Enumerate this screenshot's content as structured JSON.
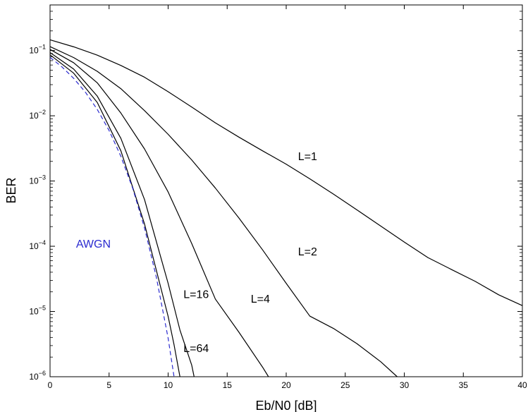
{
  "chart_data": {
    "type": "line",
    "xlabel": "Eb/N0 [dB]",
    "ylabel": "BER",
    "xlim": [
      0,
      40
    ],
    "ylim": [
      1e-06,
      0.5
    ],
    "yscale": "log",
    "grid": false,
    "x_ticks": [
      0,
      5,
      10,
      15,
      20,
      25,
      30,
      35,
      40
    ],
    "x_tick_labels": [
      "0",
      "5",
      "10",
      "15",
      "20",
      "25",
      "30",
      "35",
      "40"
    ],
    "y_ticks": [
      1e-06,
      1e-05,
      0.0001,
      0.001,
      0.01,
      0.1
    ],
    "y_tick_labels": [
      {
        "base": "10",
        "exp": "−6"
      },
      {
        "base": "10",
        "exp": "−5"
      },
      {
        "base": "10",
        "exp": "−4"
      },
      {
        "base": "10",
        "exp": "−3"
      },
      {
        "base": "10",
        "exp": "−2"
      },
      {
        "base": "10",
        "exp": "−1"
      }
    ],
    "series": [
      {
        "name": "L=1",
        "color": "#000000",
        "dash": "solid",
        "points": [
          [
            0,
            0.146
          ],
          [
            2,
            0.114
          ],
          [
            4,
            0.085
          ],
          [
            6,
            0.059
          ],
          [
            8,
            0.039
          ],
          [
            10,
            0.0234
          ],
          [
            12,
            0.0136
          ],
          [
            14,
            0.0078
          ],
          [
            16,
            0.0047
          ],
          [
            18,
            0.0029
          ],
          [
            20,
            0.00181
          ],
          [
            22,
            0.00108
          ],
          [
            24,
            0.00063
          ],
          [
            26,
            0.00036
          ],
          [
            28,
            0.000204
          ],
          [
            30,
            0.000116
          ],
          [
            32,
            6.7e-05
          ],
          [
            34,
            4.4e-05
          ],
          [
            36,
            2.9e-05
          ],
          [
            38,
            1.8e-05
          ],
          [
            40,
            1.23e-05
          ]
        ]
      },
      {
        "name": "L=2",
        "color": "#000000",
        "dash": "solid",
        "points": [
          [
            0,
            0.115
          ],
          [
            2,
            0.078
          ],
          [
            4,
            0.048
          ],
          [
            6,
            0.026
          ],
          [
            8,
            0.012
          ],
          [
            10,
            0.0052
          ],
          [
            12,
            0.0021
          ],
          [
            14,
            0.00078
          ],
          [
            16,
            0.00027
          ],
          [
            18,
            8.8e-05
          ],
          [
            20,
            2.7e-05
          ],
          [
            22,
            8.5e-06
          ],
          [
            24,
            5.5e-06
          ],
          [
            26,
            3.2e-06
          ],
          [
            28,
            1.7e-06
          ],
          [
            29.4,
            1e-06
          ]
        ]
      },
      {
        "name": "L=4",
        "color": "#000000",
        "dash": "solid",
        "points": [
          [
            0,
            0.104
          ],
          [
            2,
            0.065
          ],
          [
            4,
            0.032
          ],
          [
            6,
            0.011
          ],
          [
            8,
            0.0031
          ],
          [
            10,
            0.00068
          ],
          [
            12,
            0.00011
          ],
          [
            14,
            1.55e-05
          ],
          [
            16,
            4.8e-06
          ],
          [
            18,
            1.4e-06
          ],
          [
            18.5,
            1e-06
          ]
        ]
      },
      {
        "name": "L=16",
        "color": "#000000",
        "dash": "solid",
        "points": [
          [
            0,
            0.093
          ],
          [
            2,
            0.052
          ],
          [
            4,
            0.02
          ],
          [
            6,
            0.0045
          ],
          [
            8,
            0.00052
          ],
          [
            10,
            2.7e-05
          ],
          [
            11,
            5.2e-06
          ],
          [
            12,
            1.5e-06
          ],
          [
            12.2,
            1e-06
          ]
        ]
      },
      {
        "name": "L=64",
        "color": "#000000",
        "dash": "solid",
        "points": [
          [
            0,
            0.086
          ],
          [
            2,
            0.045
          ],
          [
            4,
            0.016
          ],
          [
            6,
            0.0029
          ],
          [
            8,
            0.00022
          ],
          [
            10,
            8.4e-06
          ],
          [
            10.5,
            3.1e-06
          ],
          [
            11,
            1e-06
          ]
        ]
      },
      {
        "name": "AWGN",
        "color": "#2b2bd0",
        "dash": "dashed",
        "points": [
          [
            0,
            0.0786
          ],
          [
            1,
            0.0563
          ],
          [
            2,
            0.0375
          ],
          [
            3,
            0.0229
          ],
          [
            4,
            0.0125
          ],
          [
            5,
            0.00595
          ],
          [
            6,
            0.00239
          ],
          [
            7,
            0.000773
          ],
          [
            8,
            0.000191
          ],
          [
            9,
            3.36e-05
          ],
          [
            10,
            3.9e-06
          ],
          [
            10.5,
            1e-06
          ]
        ]
      }
    ],
    "annotations": [
      {
        "text": "L=1",
        "x": 21,
        "y": 0.0021,
        "color": "#000000"
      },
      {
        "text": "L=2",
        "x": 21,
        "y": 7.2e-05,
        "color": "#000000"
      },
      {
        "text": "L=4",
        "x": 17,
        "y": 1.36e-05,
        "color": "#000000"
      },
      {
        "text": "L=16",
        "x": 11.3,
        "y": 1.6e-05,
        "color": "#000000"
      },
      {
        "text": "L=64",
        "x": 11.3,
        "y": 2.4e-06,
        "color": "#000000"
      },
      {
        "text": "AWGN",
        "x": 2.2,
        "y": 9.5e-05,
        "color": "#2b2bd0"
      }
    ]
  }
}
